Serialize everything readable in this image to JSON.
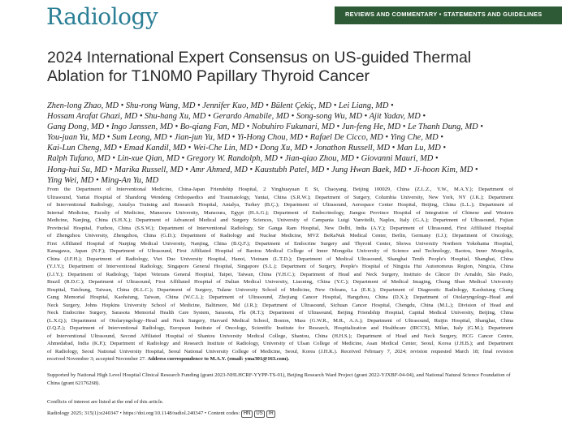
{
  "header": {
    "journal": "Radiology",
    "section": "REVIEWS AND COMMENTARY • STATEMENTS AND GUIDELINES"
  },
  "title_lines": [
    "2024 International Expert Consensus on US-guided Thermal",
    "Ablation for T1N0M0 Papillary Thyroid Cancer"
  ],
  "author_lines": [
    "Zhen-long Zhao, MD • Shu-rong Wang, MD • Jennifer Kuo, MD • Bülent Çekiç, MD • Lei Liang, MD •",
    "Hossam Arafat Ghazi, MD • Shu-hang Xu, MD • Gerardo Amabile, MD • Song-song Wu, MD • Ajit Yadav, MD •",
    "Gang Dong, MD • Ingo Janssen, MD • Bo-qiang Fan, MD • Nobuhiro Fukunari, MD • Jun-feng He, MD • Le Thanh Dung, MD •",
    "You-juan Yu, MD • Sum Leong, MD • Jian-jun Yu, MD • Yi-Hong Chou, MD • Rafael De Cicco, MD • Ying Che, MD •",
    "Kai-Lun Cheng, MD • Emad Kandil, MD • Wei-Che Lin, MD • Dong Xu, MD • Jonathon Russell, MD • Man Lu, MD •",
    "Ralph Tufano, MD • Lin-xue Qian, MD • Gregory W. Randolph, MD • Jian-qiao Zhou, MD • Giovanni Mauri, MD •",
    "Hong-hui Su, MD • Marika Russell, MD • Amr Ahmed, MD • Kaustubh Patel, MD • Jung Hwan Baek, MD • Ji-hoon Kim, MD •",
    "Ying Wei, MD • Ming-An Yu, MD"
  ],
  "affiliation_lines": [
    "From the Department of Interventional Medicine, China-Japan Friendship Hospital, 2 Yinghuayuan E St, Chaoyang, Beijing 100029, China (Z.L.Z., Y.W., M.A.Y.); Department of",
    "Ultrasound, Yantai Hospital of Shandong Wendeng Orthopaedics and Traumatology, Yantai, China (S.R.W.); Department of Surgery, Columbia University, New York, NY (J.K.); Department",
    "of Interventional Radiology, Antalya Training and Research Hospital, Antalya, Turkey (B.Ç.); Department of Ultrasound, Aerospace Center Hospital, Beijing, China (L.L.); Department of",
    "Internal Medicine, Faculty of Medicine, Mansoura University, Mansoura, Egypt (H.A.G.); Department of Endocrinology, Jiangsu Province Hospital of Integration of Chinese and Western",
    "Medicine, Nanjing, China (S.H.X.); Department of Advanced Medical and Surgery Sciences, University of Campania Luigi Vanvitelli, Naples, Italy (G.A.); Department of Ultrasound, Fujian",
    "Provincial Hospital, Fuzhou, China (S.S.W.); Department of Interventional Radiology, Sir Ganga Ram Hospital, New Delhi, India (A.Y.); Department of Ultrasound, First Affiliated Hospital",
    "of Zhengzhou University, Zhengzhou, China (G.D.); Department of Radiology and Nuclear Medicine, MVZ BeRaNuk Medical Center, Berlin, Germany (I.J.); Department of Oncology,",
    "First Affiliated Hospital of Nanjing Medical University, Nanjing, China (B.Q.F.); Department of Endocrine Surgery and Thyroid Center, Showa University Northern Yokohama Hospital,",
    "Kanagawa, Japan (N.F.); Department of Ultrasound, First Affiliated Hospital of Baotou Medical College of Inner Mongolia University of Science and Technology, Baotou, Inner Mongolia,",
    "China (J.F.H.); Department of Radiology, Viet Duc University Hospital, Hanoi, Vietnam (L.T.D.); Department of Medical Ultrasound, Shanghai Tenth People's Hospital, Shanghai, China",
    "(Y.J.Y.); Department of Interventional Radiology, Singapore General Hospital, Singapore (S.L.); Department of Surgery, People's Hospital of Ningxia Hui Autonomous Region, Ningxia, China",
    "(J.J.Y.); Department of Radiology, Taipei Veterans General Hospital, Taipei, Taiwan, China (Y.H.C.); Department of Head and Neck Surgery, Instituto de Câncer Dr Arnaldo, São Paulo,",
    "Brazil (R.D.C.); Department of Ultrasound, First Affiliated Hospital of Dalian Medical University, Liaoning, China (Y.C.); Department of Medical Imaging, Chung Shan Medical University",
    "Hospital, Taichung, Taiwan, China (K.L.C.); Department of Surgery, Tulane University School of Medicine, New Orleans, La (E.K.); Department of Diagnostic Radiology, Kaohsiung Chang",
    "Gung Memorial Hospital, Kaohsiung, Taiwan, China (W.C.L.); Department of Ultrasound, Zhejiang Cancer Hospital, Hangzhou, China (D.X.); Department of Otolaryngology–Head and",
    "Neck Surgery, Johns Hopkins University School of Medicine, Baltimore, Md (J.R.); Department of Ultrasound, Sichuan Cancer Hospital, Chengdu, China (M.L.); Division of Head and",
    "Neck Endocrine Surgery, Sarasota Memorial Health Care System, Sarasota, Fla (R.T.); Department of Ultrasound, Beijing Friendship Hospital, Capital Medical University, Beijing, China",
    "(L.X.Q.); Department of Otolaryngology–Head and Neck Surgery, Harvard Medical School, Boston, Mass (G.W.R., M.R., A.A.); Department of Ultrasound, Ruijin Hospital, Shanghai, China",
    "(J.Q.Z.); Department of Interventional Radiology, European Institute of Oncology, Scientific Institute for Research, Hospitalization and Healthcare (IRCCS), Milan, Italy (G.M.); Department",
    "of Interventional Ultrasound, Second Affiliated Hospital of Shantou University Medical College, Shantou, China (H.H.S.); Department of Head and Neck Surgery, HCG Cancer Centre,",
    "Ahmedabad, India (K.P.); Department of Radiology and Research Institute of Radiology, University of Ulsan College of Medicine, Asan Medical Center, Seoul, Korea (J.H.B.); and Department",
    "of Radiology, Seoul National University Hospital, Seoul National University College of Medicine, Seoul, Korea (J.H.K.). Received February 7, 2024; revision requested March 18; final revision"
  ],
  "affiliation_last": "received November 3; accepted November 27.",
  "correspondence": "Address correspondence to M.A.Y. (email: yma301@163.com).",
  "support": "Supported by National High Level Hospital Clinical Research Funding (grant 2023-NHLHCRF-YYPP-TS-01), Beijing Research Ward Project (grant 2022-YJXBF-04-04), and National Natural Science Foundation of China (grant 62176268).",
  "conflicts": "Conflicts of interest are listed at the end of this article.",
  "footer": {
    "citation": "Radiology 2025; 315(1):e240347 • https://doi.org/10.1148/radiol.240347 • Content codes:",
    "codes": [
      "HN",
      "US",
      "IR"
    ]
  }
}
